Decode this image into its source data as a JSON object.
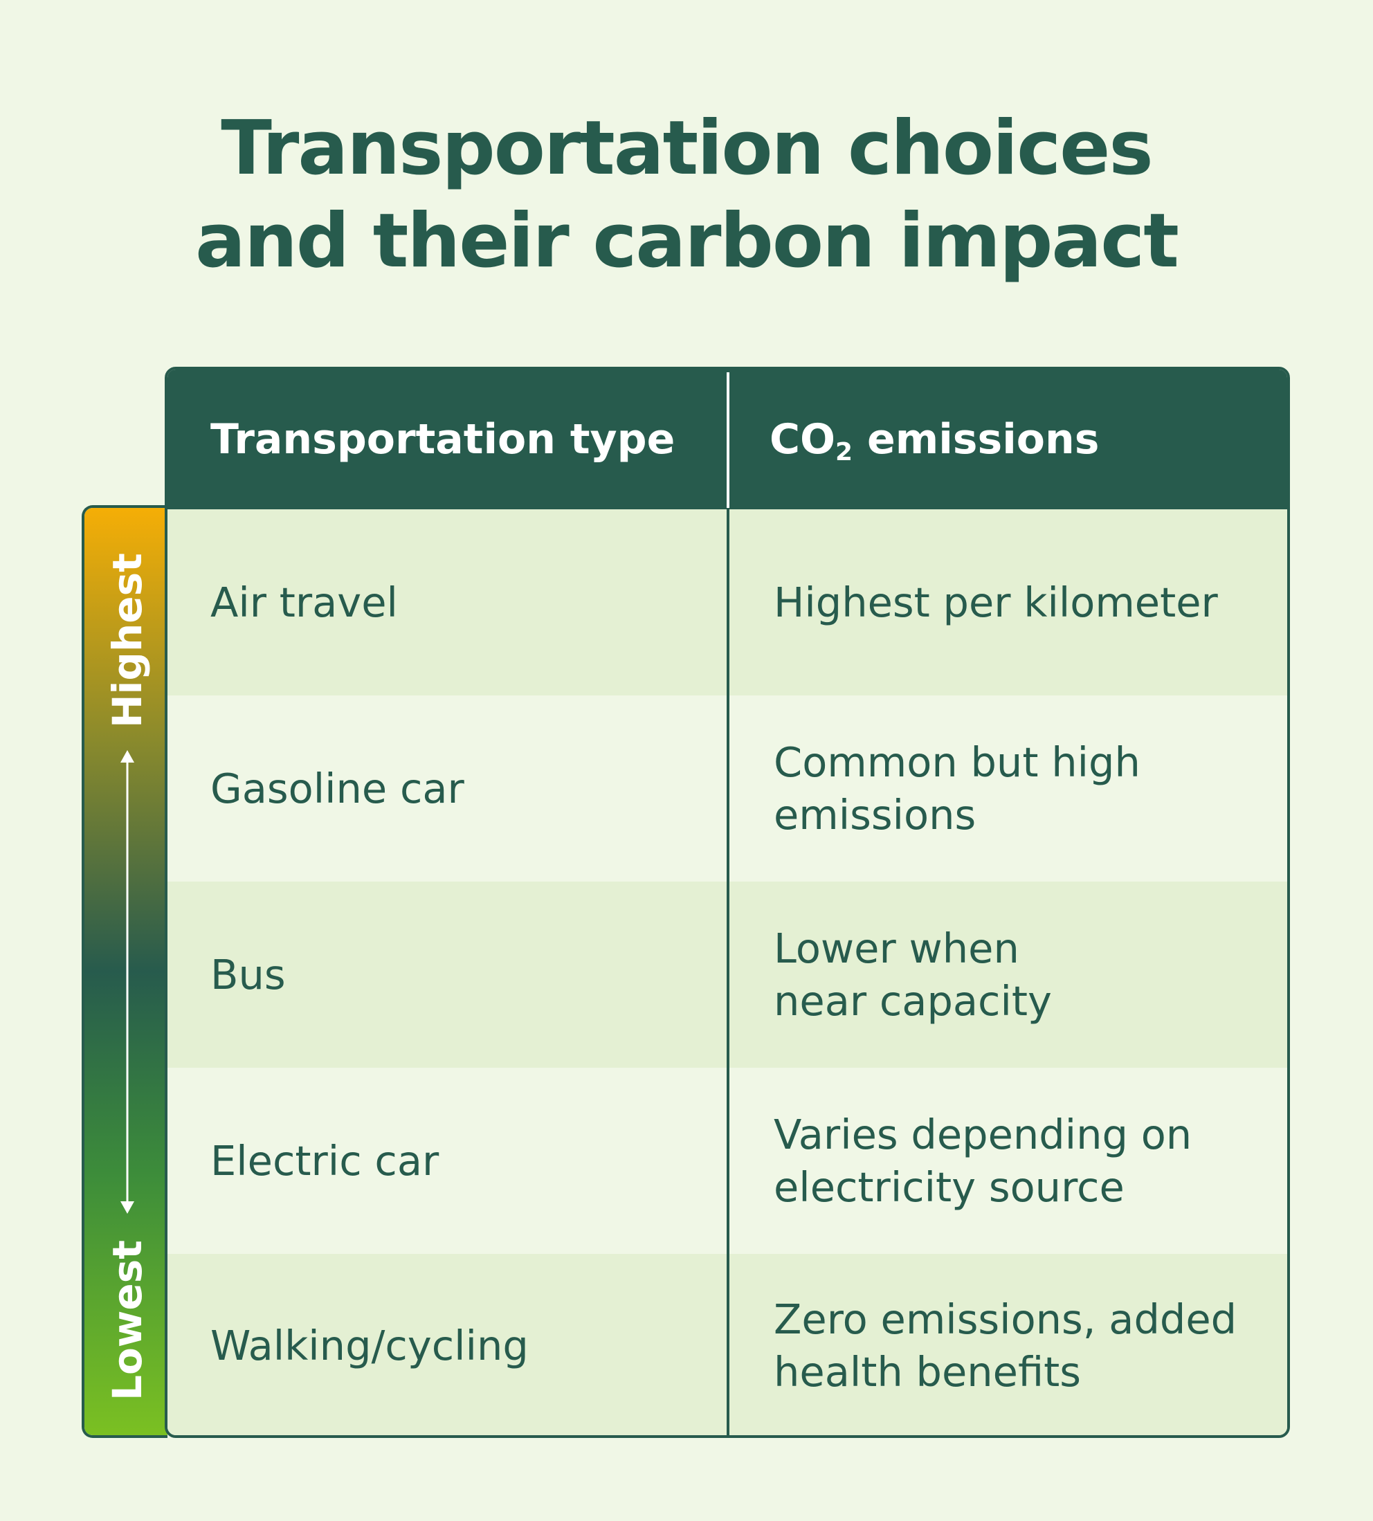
{
  "title": {
    "line1": "Transportation choices",
    "line2": "and their carbon impact"
  },
  "table": {
    "headers": {
      "type": "Transportation type",
      "co2_prefix": "CO",
      "co2_subscript": "2",
      "co2_suffix": " emissions"
    },
    "rows": [
      {
        "type": "Air travel",
        "description": "Highest per kilometer"
      },
      {
        "type": "Gasoline car",
        "description": "Common but high emissions"
      },
      {
        "type": "Bus",
        "description": "Lower when near capacity"
      },
      {
        "type": "Electric car",
        "description": "Varies depending on electricity source"
      },
      {
        "type": "Walking/cycling",
        "description": "Zero emissions, added health benefits"
      }
    ]
  },
  "scale": {
    "top_label": "Highest",
    "bottom_label": "Lowest"
  },
  "colors": {
    "primary": "#275b4d",
    "background": "#f0f7e6",
    "row_shade": "#e4f0d3",
    "gradient_top": "#f5ae06",
    "gradient_bottom": "#7bc022"
  }
}
